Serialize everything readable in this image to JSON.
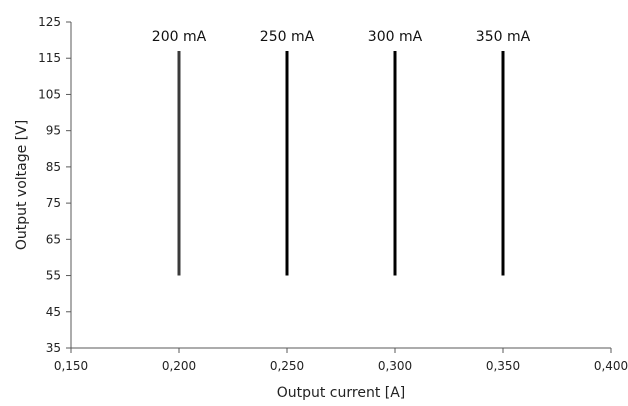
{
  "chart_data": {
    "type": "line",
    "xlabel": "Output current [A]",
    "ylabel": "Output voltage [V]",
    "xlim": [
      0.15,
      0.4
    ],
    "ylim": [
      35,
      125
    ],
    "x_ticks": [
      "0,150",
      "0,200",
      "0,250",
      "0,300",
      "0,350",
      "0,400"
    ],
    "y_ticks": [
      "35",
      "45",
      "55",
      "65",
      "75",
      "85",
      "95",
      "105",
      "115",
      "125"
    ],
    "grid": false,
    "series": [
      {
        "name": "200 mA",
        "x": [
          0.2,
          0.2
        ],
        "y": [
          55,
          117
        ],
        "color": "#3a3a3a"
      },
      {
        "name": "250 mA",
        "x": [
          0.25,
          0.25
        ],
        "y": [
          55,
          117
        ],
        "color": "#000000"
      },
      {
        "name": "300 mA",
        "x": [
          0.3,
          0.3
        ],
        "y": [
          55,
          117
        ],
        "color": "#000000"
      },
      {
        "name": "350 mA",
        "x": [
          0.35,
          0.35
        ],
        "y": [
          55,
          117
        ],
        "color": "#000000"
      }
    ]
  }
}
